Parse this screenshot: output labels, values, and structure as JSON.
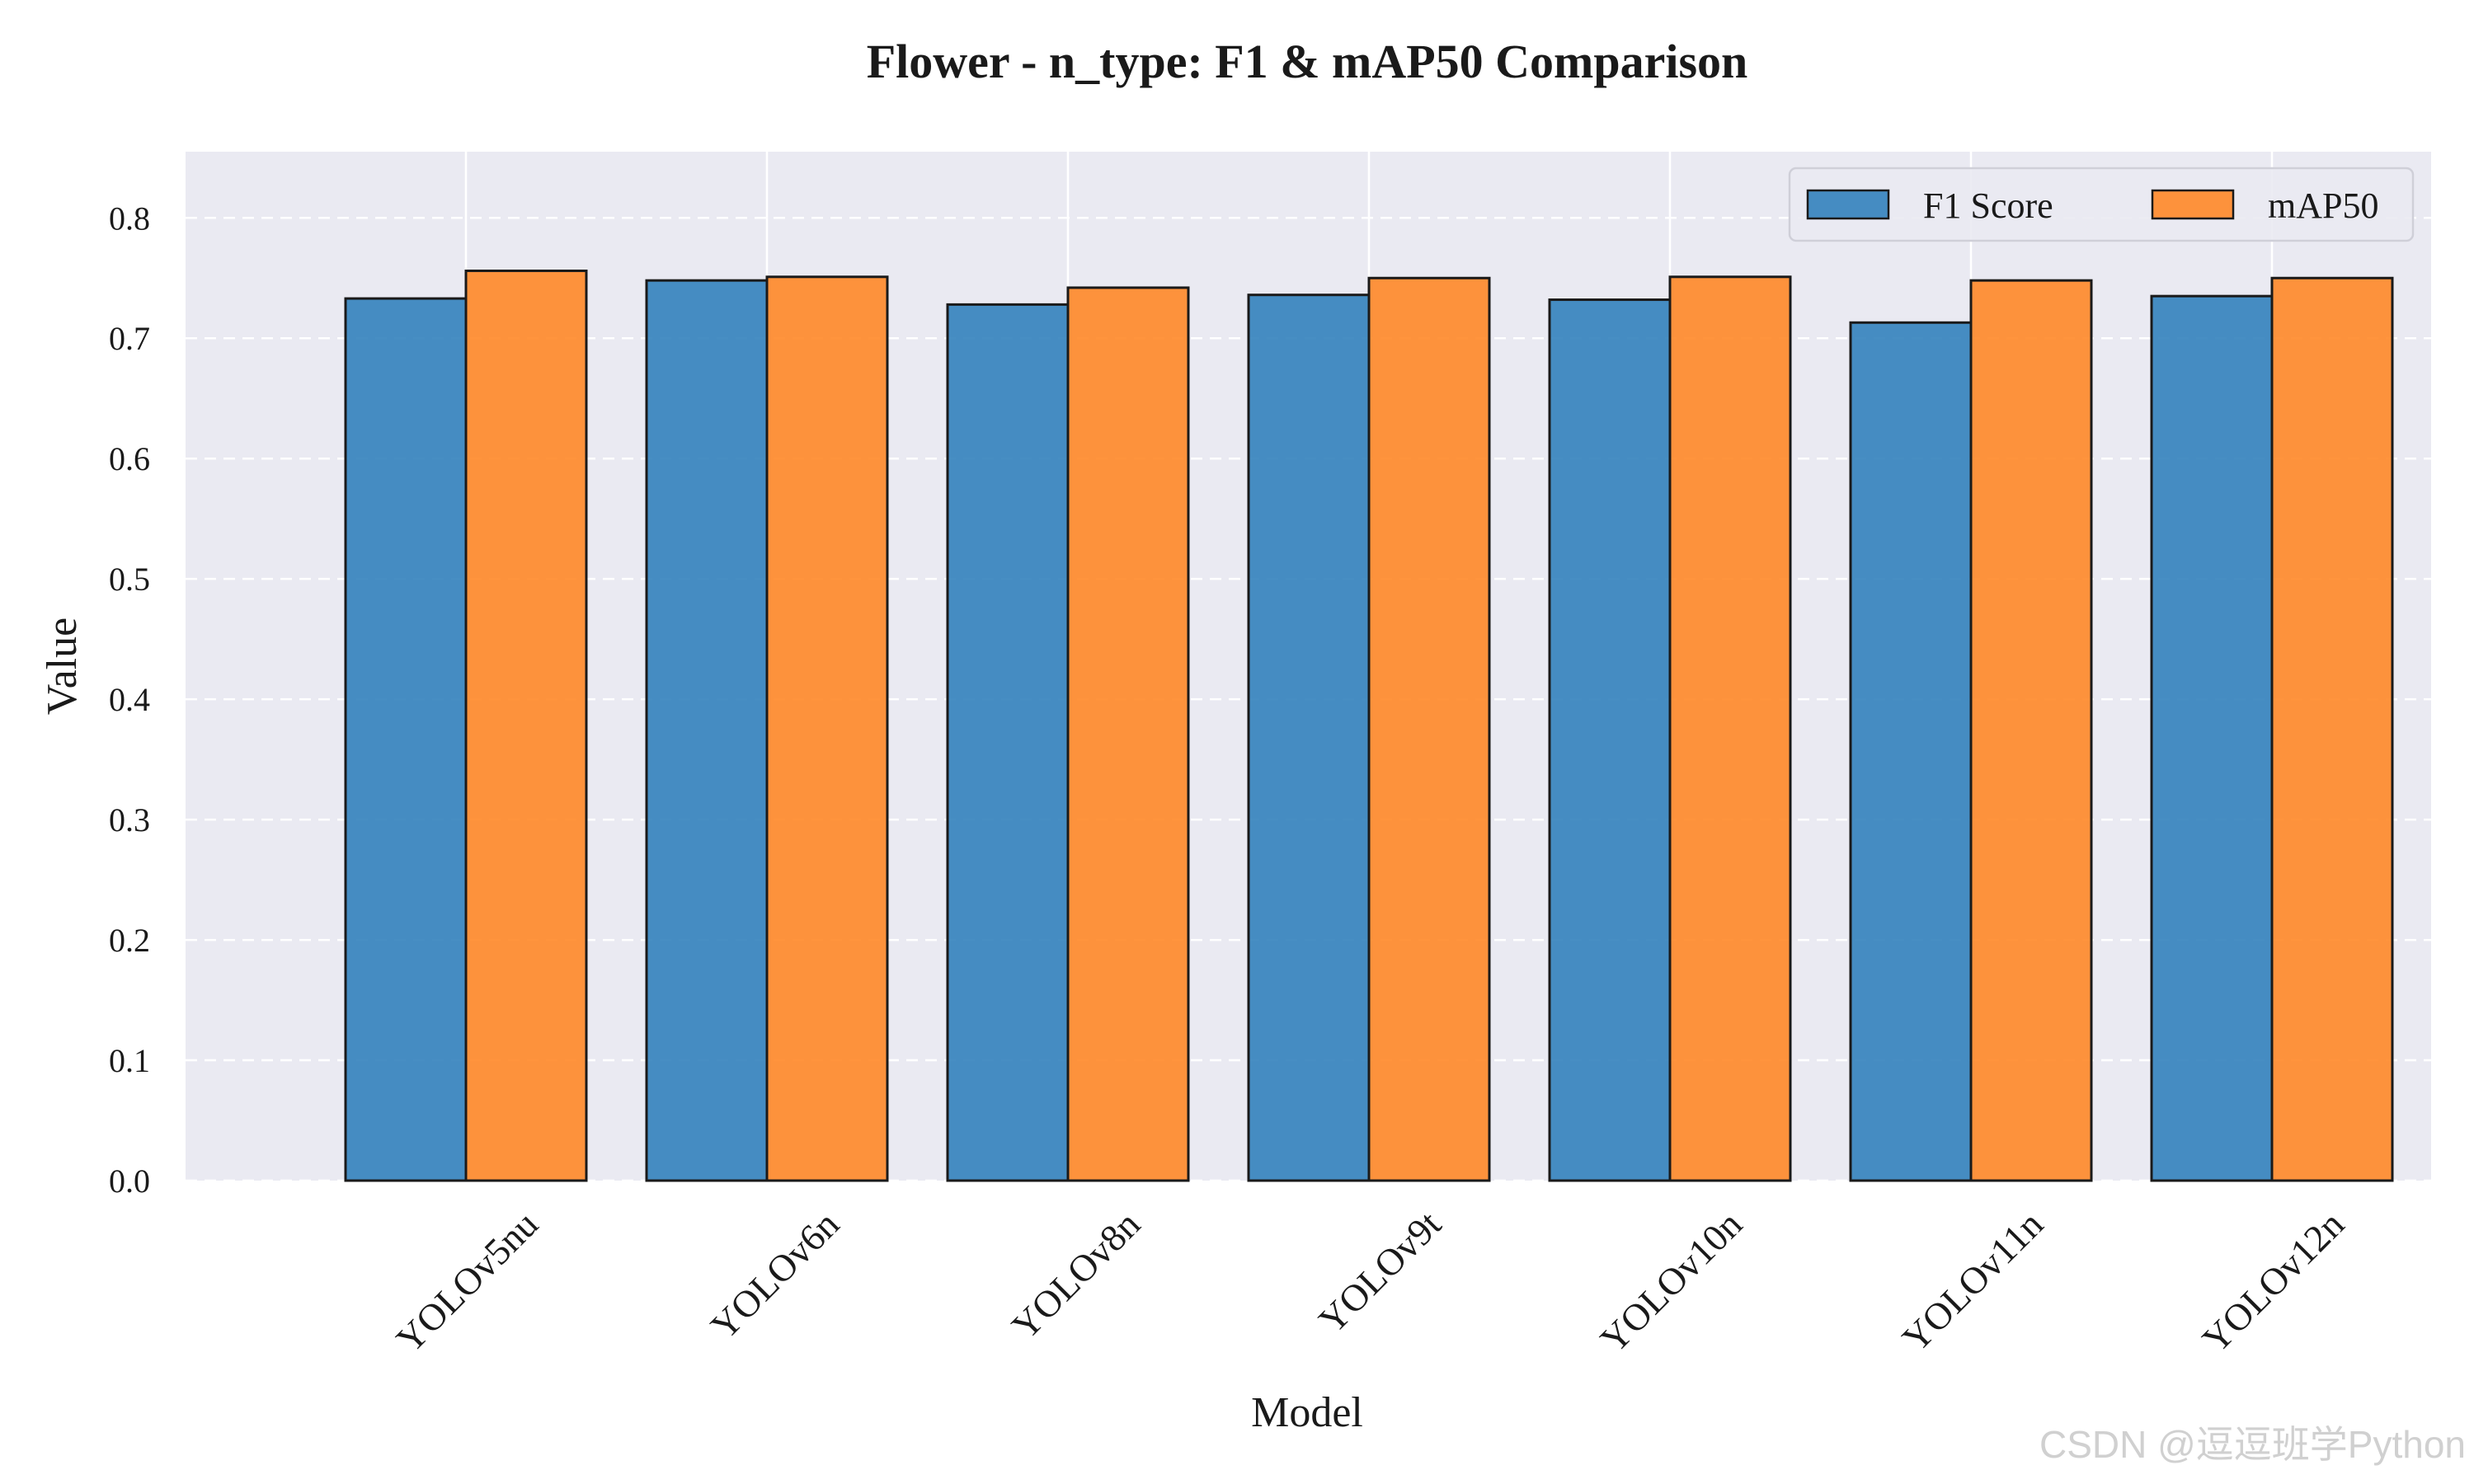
{
  "chart_data": {
    "type": "bar",
    "title": "Flower - n_type: F1 & mAP50 Comparison",
    "xlabel": "Model",
    "ylabel": "Value",
    "categories": [
      "YOLOv5nu",
      "YOLOv6n",
      "YOLOv8n",
      "YOLOv9t",
      "YOLOv10n",
      "YOLOv11n",
      "YOLOv12n"
    ],
    "series": [
      {
        "name": "F1 Score",
        "color": "#2E7EBB",
        "values": [
          0.733,
          0.748,
          0.728,
          0.736,
          0.732,
          0.713,
          0.735
        ]
      },
      {
        "name": "mAP50",
        "color": "#FF8522",
        "values": [
          0.756,
          0.751,
          0.742,
          0.75,
          0.751,
          0.748,
          0.75
        ]
      }
    ],
    "ylim": [
      0,
      0.855
    ],
    "yticks": [
      "0.0",
      "0.1",
      "0.2",
      "0.3",
      "0.4",
      "0.5",
      "0.6",
      "0.7",
      "0.8"
    ],
    "grid": true,
    "legend_position": "top-right",
    "background_color": "#EAEAF2"
  },
  "watermark": "CSDN @逗逗班学Python"
}
